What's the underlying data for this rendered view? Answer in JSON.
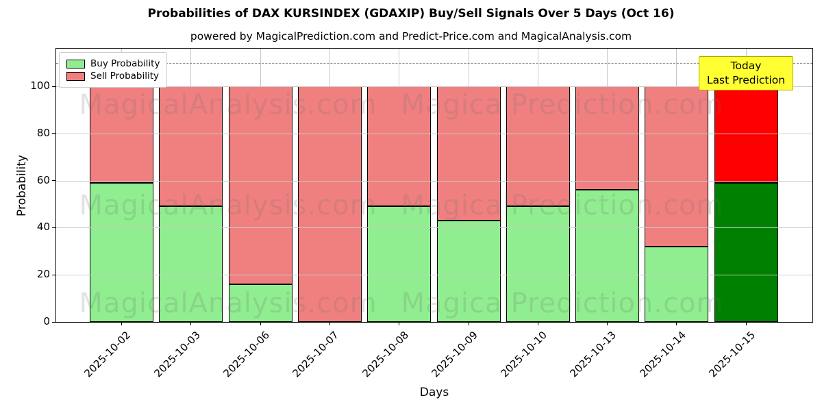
{
  "title": "Probabilities of DAX KURSINDEX (GDAXIP) Buy/Sell Signals Over 5 Days (Oct 16)",
  "subtitle": "powered by MagicalPrediction.com and Predict-Price.com and MagicalAnalysis.com",
  "watermarks": {
    "left": "MagicalAnalysis.com",
    "right": "MagicalPrediction.com"
  },
  "annotation": {
    "line1": "Today",
    "line2": "Last Prediction",
    "bg_color": "#FFFF33",
    "border_color": "#AAAA00"
  },
  "legend": {
    "items": [
      {
        "label": "Buy Probability",
        "color": "#90EE90"
      },
      {
        "label": "Sell Probability",
        "color": "#F08080"
      }
    ]
  },
  "axes": {
    "xlabel": "Days",
    "ylabel": "Probability",
    "yticks": [
      0,
      20,
      40,
      60,
      80,
      100
    ],
    "ylim": [
      0,
      116
    ],
    "threshold_line_y": 110,
    "grid": "on"
  },
  "chart_data": {
    "type": "bar",
    "stacked": true,
    "title": "Probabilities of DAX KURSINDEX (GDAXIP) Buy/Sell Signals Over 5 Days (Oct 16)",
    "xlabel": "Days",
    "ylabel": "Probability",
    "ylim": [
      0,
      116
    ],
    "grid": "on",
    "legend_position": "upper left",
    "categories": [
      "2025-10-02",
      "2025-10-03",
      "2025-10-06",
      "2025-10-07",
      "2025-10-08",
      "2025-10-09",
      "2025-10-10",
      "2025-10-13",
      "2025-10-14",
      "2025-10-15"
    ],
    "series": [
      {
        "name": "Buy Probability",
        "color": "#90EE90",
        "today_color": "#008000",
        "values": [
          59,
          49,
          16,
          0,
          49,
          43,
          49,
          56,
          32,
          59
        ]
      },
      {
        "name": "Sell Probability",
        "color": "#F08080",
        "today_color": "#FF0000",
        "values": [
          41,
          51,
          84,
          100,
          51,
          57,
          51,
          44,
          68,
          41
        ]
      }
    ],
    "today_index": 9,
    "today_annotation": "Today Last Prediction"
  }
}
